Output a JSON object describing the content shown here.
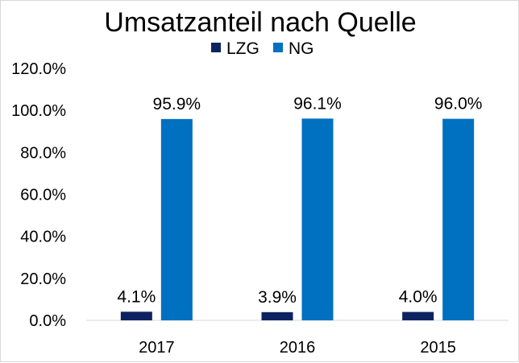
{
  "chart_data": {
    "type": "bar",
    "title": "Umsatzanteil nach Quelle",
    "categories": [
      "2017",
      "2016",
      "2015"
    ],
    "series": [
      {
        "name": "LZG",
        "color": "#0d2361",
        "values": [
          4.1,
          3.9,
          4.0
        ],
        "labels": [
          "4.1%",
          "3.9%",
          "4.0%"
        ]
      },
      {
        "name": "NG",
        "color": "#0070c0",
        "values": [
          95.9,
          96.1,
          96.0
        ],
        "labels": [
          "95.9%",
          "96.1%",
          "96.0%"
        ]
      }
    ],
    "ylim": [
      0,
      120
    ],
    "yticks": [
      "0.0%",
      "20.0%",
      "40.0%",
      "60.0%",
      "80.0%",
      "100.0%",
      "120.0%"
    ],
    "ytick_values": [
      0,
      20,
      40,
      60,
      80,
      100,
      120
    ],
    "legend_position": "top",
    "grid": false
  }
}
